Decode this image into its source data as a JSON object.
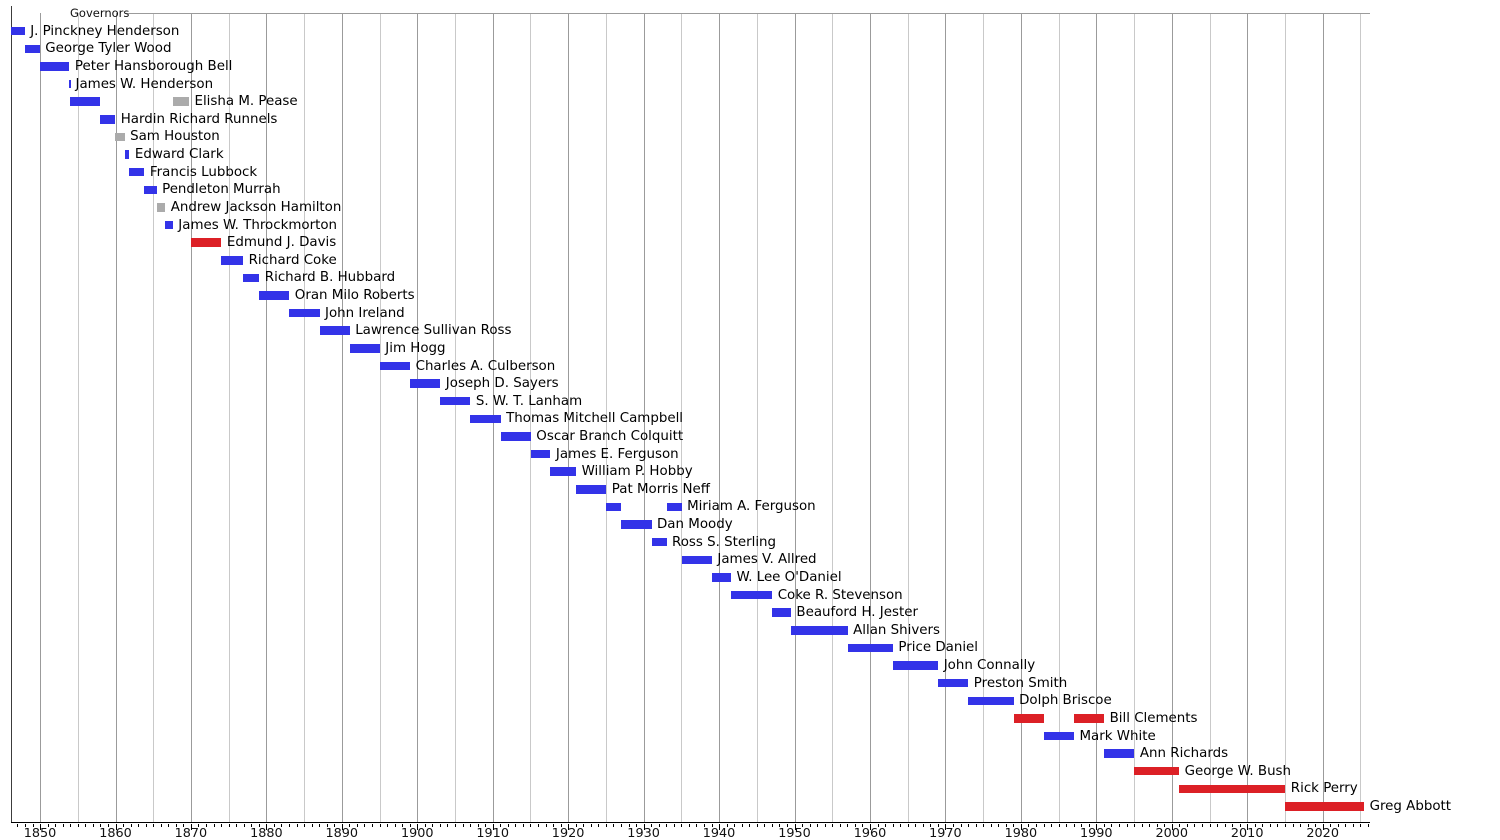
{
  "chart_data": {
    "type": "bar",
    "variant": "horizontal-timeline-gantt",
    "title": "Governors",
    "legend_position": "none",
    "grid": "vertical, every 5 years (decade lines darker)",
    "x_axis": {
      "unit": "year",
      "range": [
        1846.2,
        2026.2
      ],
      "major_tick_labels": [
        "1850",
        "1860",
        "1870",
        "1880",
        "1890",
        "1900",
        "1910",
        "1920",
        "1930",
        "1940",
        "1950",
        "1960",
        "1970",
        "1980",
        "1990",
        "2000",
        "2010",
        "2020"
      ],
      "major_tick_interval_years": 10,
      "minor_tick_interval_years": 1,
      "gridline_interval_years": 5
    },
    "colors": {
      "democratic": "#3333e8",
      "republican": "#dc2026",
      "nonpartisan": "#ababab"
    },
    "governors": [
      {
        "name": "J. Pinckney Henderson",
        "terms": [
          {
            "start": 1846.13,
            "end": 1847.97,
            "party": "democratic"
          }
        ]
      },
      {
        "name": "George Tyler Wood",
        "terms": [
          {
            "start": 1847.97,
            "end": 1849.97,
            "party": "democratic"
          }
        ]
      },
      {
        "name": "Peter Hansborough Bell",
        "terms": [
          {
            "start": 1849.97,
            "end": 1853.9,
            "party": "democratic"
          }
        ]
      },
      {
        "name": "James W. Henderson",
        "terms": [
          {
            "start": 1853.9,
            "end": 1853.97,
            "party": "democratic"
          }
        ]
      },
      {
        "name": "Elisha M. Pease",
        "terms": [
          {
            "start": 1853.97,
            "end": 1857.97,
            "party": "democratic"
          },
          {
            "start": 1867.6,
            "end": 1869.75,
            "party": "nonpartisan"
          }
        ]
      },
      {
        "name": "Hardin Richard Runnels",
        "terms": [
          {
            "start": 1857.97,
            "end": 1859.97,
            "party": "democratic"
          }
        ]
      },
      {
        "name": "Sam Houston",
        "terms": [
          {
            "start": 1859.97,
            "end": 1861.21,
            "party": "nonpartisan"
          }
        ]
      },
      {
        "name": "Edward Clark",
        "terms": [
          {
            "start": 1861.21,
            "end": 1861.85,
            "party": "democratic"
          }
        ]
      },
      {
        "name": "Francis Lubbock",
        "terms": [
          {
            "start": 1861.85,
            "end": 1863.84,
            "party": "democratic"
          }
        ]
      },
      {
        "name": "Pendleton Murrah",
        "terms": [
          {
            "start": 1863.84,
            "end": 1865.46,
            "party": "democratic"
          }
        ]
      },
      {
        "name": "Andrew Jackson Hamilton",
        "terms": [
          {
            "start": 1865.46,
            "end": 1866.6,
            "party": "nonpartisan"
          }
        ]
      },
      {
        "name": "James W. Throckmorton",
        "terms": [
          {
            "start": 1866.6,
            "end": 1867.6,
            "party": "democratic"
          }
        ]
      },
      {
        "name": "Edmund J. Davis",
        "terms": [
          {
            "start": 1870.02,
            "end": 1874.04,
            "party": "republican"
          }
        ]
      },
      {
        "name": "Richard Coke",
        "terms": [
          {
            "start": 1874.04,
            "end": 1876.92,
            "party": "democratic"
          }
        ]
      },
      {
        "name": "Richard B. Hubbard",
        "terms": [
          {
            "start": 1876.92,
            "end": 1879.06,
            "party": "democratic"
          }
        ]
      },
      {
        "name": "Oran Milo Roberts",
        "terms": [
          {
            "start": 1879.06,
            "end": 1883.04,
            "party": "democratic"
          }
        ]
      },
      {
        "name": "John Ireland",
        "terms": [
          {
            "start": 1883.04,
            "end": 1887.05,
            "party": "democratic"
          }
        ]
      },
      {
        "name": "Lawrence Sullivan Ross",
        "terms": [
          {
            "start": 1887.05,
            "end": 1891.05,
            "party": "democratic"
          }
        ]
      },
      {
        "name": "Jim Hogg",
        "terms": [
          {
            "start": 1891.05,
            "end": 1895.04,
            "party": "democratic"
          }
        ]
      },
      {
        "name": "Charles A. Culberson",
        "terms": [
          {
            "start": 1895.04,
            "end": 1899.05,
            "party": "democratic"
          }
        ]
      },
      {
        "name": "Joseph D. Sayers",
        "terms": [
          {
            "start": 1899.05,
            "end": 1903.05,
            "party": "democratic"
          }
        ]
      },
      {
        "name": "S. W. T. Lanham",
        "terms": [
          {
            "start": 1903.05,
            "end": 1907.04,
            "party": "democratic"
          }
        ]
      },
      {
        "name": "Thomas Mitchell Campbell",
        "terms": [
          {
            "start": 1907.04,
            "end": 1911.05,
            "party": "democratic"
          }
        ]
      },
      {
        "name": "Oscar Branch Colquitt",
        "terms": [
          {
            "start": 1911.05,
            "end": 1915.05,
            "party": "democratic"
          }
        ]
      },
      {
        "name": "James E. Ferguson",
        "terms": [
          {
            "start": 1915.05,
            "end": 1917.65,
            "party": "democratic"
          }
        ]
      },
      {
        "name": "William P. Hobby",
        "terms": [
          {
            "start": 1917.65,
            "end": 1921.05,
            "party": "democratic"
          }
        ]
      },
      {
        "name": "Pat Morris Neff",
        "terms": [
          {
            "start": 1921.05,
            "end": 1925.05,
            "party": "democratic"
          }
        ]
      },
      {
        "name": "Miriam A. Ferguson",
        "terms": [
          {
            "start": 1925.05,
            "end": 1927.04,
            "party": "democratic"
          },
          {
            "start": 1933.04,
            "end": 1935.04,
            "party": "democratic"
          }
        ]
      },
      {
        "name": "Dan Moody",
        "terms": [
          {
            "start": 1927.04,
            "end": 1931.05,
            "party": "democratic"
          }
        ]
      },
      {
        "name": "Ross S. Sterling",
        "terms": [
          {
            "start": 1931.05,
            "end": 1933.04,
            "party": "democratic"
          }
        ]
      },
      {
        "name": "James V. Allred",
        "terms": [
          {
            "start": 1935.04,
            "end": 1939.05,
            "party": "democratic"
          }
        ]
      },
      {
        "name": "W. Lee O'Daniel",
        "terms": [
          {
            "start": 1939.05,
            "end": 1941.59,
            "party": "democratic"
          }
        ]
      },
      {
        "name": "Coke R. Stevenson",
        "terms": [
          {
            "start": 1941.59,
            "end": 1947.05,
            "party": "democratic"
          }
        ]
      },
      {
        "name": "Beauford H. Jester",
        "terms": [
          {
            "start": 1947.05,
            "end": 1949.52,
            "party": "democratic"
          }
        ]
      },
      {
        "name": "Allan Shivers",
        "terms": [
          {
            "start": 1949.52,
            "end": 1957.04,
            "party": "democratic"
          }
        ]
      },
      {
        "name": "Price Daniel",
        "terms": [
          {
            "start": 1957.04,
            "end": 1963.04,
            "party": "democratic"
          }
        ]
      },
      {
        "name": "John Connally",
        "terms": [
          {
            "start": 1963.04,
            "end": 1969.05,
            "party": "democratic"
          }
        ]
      },
      {
        "name": "Preston Smith",
        "terms": [
          {
            "start": 1969.05,
            "end": 1973.04,
            "party": "democratic"
          }
        ]
      },
      {
        "name": "Dolph Briscoe",
        "terms": [
          {
            "start": 1973.04,
            "end": 1979.04,
            "party": "democratic"
          }
        ]
      },
      {
        "name": "Bill Clements",
        "terms": [
          {
            "start": 1979.04,
            "end": 1983.05,
            "party": "republican"
          },
          {
            "start": 1987.05,
            "end": 1991.04,
            "party": "republican"
          }
        ]
      },
      {
        "name": "Mark White",
        "terms": [
          {
            "start": 1983.05,
            "end": 1987.05,
            "party": "democratic"
          }
        ]
      },
      {
        "name": "Ann Richards",
        "terms": [
          {
            "start": 1991.04,
            "end": 1995.05,
            "party": "democratic"
          }
        ]
      },
      {
        "name": "George W. Bush",
        "terms": [
          {
            "start": 1995.05,
            "end": 2000.97,
            "party": "republican"
          }
        ]
      },
      {
        "name": "Rick Perry",
        "terms": [
          {
            "start": 2000.97,
            "end": 2015.05,
            "party": "republican"
          }
        ]
      },
      {
        "name": "Greg Abbott",
        "terms": [
          {
            "start": 2015.05,
            "end": 2025.5,
            "party": "republican"
          }
        ]
      }
    ]
  }
}
